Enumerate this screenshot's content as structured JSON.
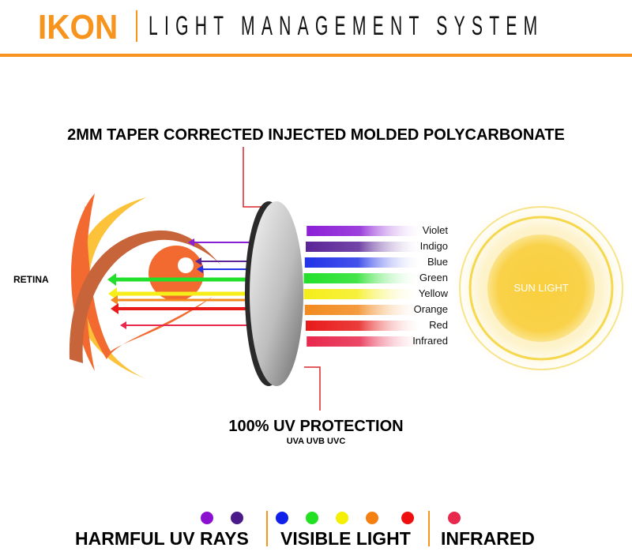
{
  "header": {
    "brand": "IKON",
    "title": "LIGHT MANAGEMENT SYSTEM",
    "accent": "#F7941D"
  },
  "callouts": {
    "lens_material": "2MM TAPER CORRECTED INJECTED MOLDED POLYCARBONATE",
    "uv_protection": "100% UV PROTECTION",
    "uv_types": "UVA UVB UVC"
  },
  "eye": {
    "label": "RETINA"
  },
  "sun": {
    "label": "SUN LIGHT"
  },
  "spectrum": [
    {
      "label": "Violet",
      "color": "#8B1FD6"
    },
    {
      "label": "Indigo",
      "color": "#5A2597"
    },
    {
      "label": "Blue",
      "color": "#2233E8"
    },
    {
      "label": "Green",
      "color": "#22E02A"
    },
    {
      "label": "Yellow",
      "color": "#F5EE1A"
    },
    {
      "label": "Orange",
      "color": "#F28A1E"
    },
    {
      "label": "Red",
      "color": "#E81A1A"
    },
    {
      "label": "Infrared",
      "color": "#E8284C"
    }
  ],
  "legend": {
    "groups": [
      {
        "label": "HARMFUL UV RAYS",
        "colors": [
          "#8B10D0",
          "#4B1A8A"
        ]
      },
      {
        "label": "VISIBLE LIGHT",
        "colors": [
          "#1020E8",
          "#22E022",
          "#F5F000",
          "#F57F10",
          "#EE1010"
        ]
      },
      {
        "label": "INFRARED",
        "colors": [
          "#E8284C"
        ]
      }
    ]
  }
}
